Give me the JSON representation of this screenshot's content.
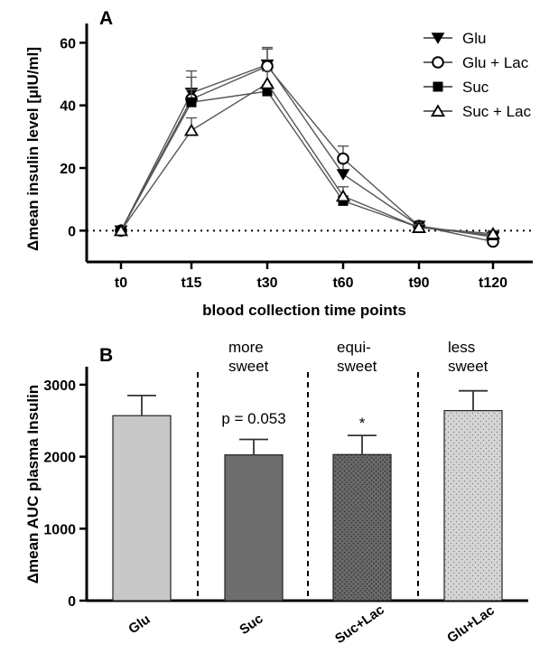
{
  "chart_data": [
    {
      "panel": "A",
      "type": "line",
      "ylabel": "Δmean insulin level [µIU/ml]",
      "xlabel": "blood collection time points",
      "categories": [
        "t0",
        "t15",
        "t30",
        "t60",
        "t90",
        "t120"
      ],
      "ylim": [
        -10,
        65
      ],
      "yticks": [
        0,
        20,
        40,
        60
      ],
      "reference_line": 0,
      "series": [
        {
          "name": "Glu",
          "marker": "triangle-down-filled",
          "values": [
            0,
            44,
            53,
            18,
            1.5,
            -2
          ],
          "errors": [
            0,
            7,
            5,
            4,
            1,
            1
          ]
        },
        {
          "name": "Glu + Lac",
          "marker": "circle-open",
          "values": [
            0,
            42,
            52.5,
            23,
            1.5,
            -3.5
          ],
          "errors": [
            0,
            7,
            6,
            4,
            1,
            1
          ]
        },
        {
          "name": "Suc",
          "marker": "square-filled",
          "values": [
            0,
            41,
            44.5,
            9.5,
            1,
            -1.5
          ],
          "errors": [
            0,
            4,
            2,
            1.5,
            1,
            1
          ]
        },
        {
          "name": "Suc + Lac",
          "marker": "triangle-up-open",
          "values": [
            0,
            32,
            47,
            11,
            1,
            -1
          ],
          "errors": [
            0,
            4,
            4,
            3,
            1,
            1
          ]
        }
      ],
      "legend": "top-right"
    },
    {
      "panel": "B",
      "type": "bar",
      "ylabel": "Δmean AUC plasma Insulin",
      "categories": [
        "Glu",
        "Suc",
        "Suc+Lac",
        "Glu+Lac"
      ],
      "values": [
        2570,
        2025,
        2030,
        2640
      ],
      "errors": [
        280,
        215,
        265,
        275
      ],
      "ylim": [
        0,
        3200
      ],
      "yticks": [
        0,
        1000,
        2000,
        3000
      ],
      "bar_colors": [
        "#c8c8c8",
        "#6e6e6e",
        "#6a6a6a",
        "#d0d0d0"
      ],
      "bar_patterns": [
        "none",
        "none",
        "dots-dark",
        "dots-light"
      ],
      "group_labels": [
        "more\nsweet",
        "equi-\nsweet",
        "less\nsweet"
      ],
      "annotations": [
        "p = 0.053",
        "*"
      ]
    }
  ]
}
